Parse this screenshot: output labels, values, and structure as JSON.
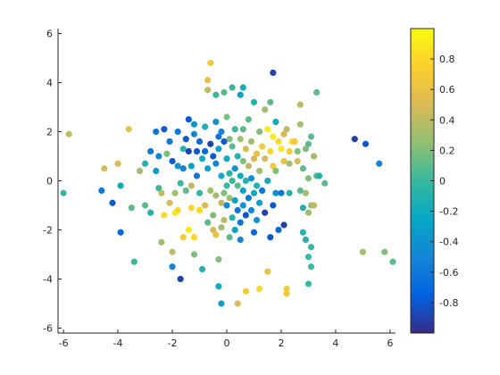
{
  "chart_data": {
    "type": "scatter",
    "title": "",
    "xlabel": "",
    "ylabel": "",
    "xlim": [
      -6.2,
      6.2
    ],
    "ylim": [
      -6.2,
      6.2
    ],
    "xticks": [
      -6,
      -4,
      -2,
      0,
      2,
      4,
      6
    ],
    "yticks": [
      -6,
      -4,
      -2,
      0,
      2,
      4,
      6
    ],
    "xtick_labels": [
      "-6",
      "-4",
      "-2",
      "0",
      "2",
      "4",
      "6"
    ],
    "ytick_labels": [
      "-6",
      "-4",
      "-2",
      "0",
      "2",
      "4",
      "6"
    ],
    "grid": false,
    "colormap": "parula",
    "colorbar": {
      "clim": [
        -1,
        1
      ],
      "ticks": [
        -0.8,
        -0.6,
        -0.4,
        -0.2,
        0,
        0.2,
        0.4,
        0.6,
        0.8
      ],
      "tick_labels": [
        "-0.8",
        "-0.6",
        "-0.4",
        "-0.2",
        "0",
        "0.2",
        "0.4",
        "0.6",
        "0.8"
      ]
    },
    "points": [
      {
        "x": -6.0,
        "y": -0.5,
        "c": 0.0
      },
      {
        "x": -5.8,
        "y": 1.9,
        "c": 0.4
      },
      {
        "x": -4.6,
        "y": -0.4,
        "c": -0.6
      },
      {
        "x": -4.5,
        "y": 0.5,
        "c": 0.5
      },
      {
        "x": -4.2,
        "y": -0.9,
        "c": -0.8
      },
      {
        "x": -4.0,
        "y": 0.7,
        "c": 0.5
      },
      {
        "x": -3.9,
        "y": -2.1,
        "c": -0.7
      },
      {
        "x": -3.9,
        "y": -0.2,
        "c": -0.2
      },
      {
        "x": -3.6,
        "y": 2.1,
        "c": 0.6
      },
      {
        "x": -3.5,
        "y": -1.1,
        "c": 0.1
      },
      {
        "x": -3.4,
        "y": -3.3,
        "c": 0.0
      },
      {
        "x": -3.2,
        "y": 0.4,
        "c": 0.3
      },
      {
        "x": -3.0,
        "y": -1.0,
        "c": 0.1
      },
      {
        "x": -3.0,
        "y": 0.7,
        "c": -0.1
      },
      {
        "x": -2.8,
        "y": 1.2,
        "c": -0.6
      },
      {
        "x": -2.8,
        "y": -1.3,
        "c": -0.1
      },
      {
        "x": -2.6,
        "y": 2.0,
        "c": -0.6
      },
      {
        "x": -2.6,
        "y": 0.4,
        "c": -0.3
      },
      {
        "x": -2.5,
        "y": 1.0,
        "c": -0.5
      },
      {
        "x": -2.5,
        "y": -0.3,
        "c": 0.0
      },
      {
        "x": -2.4,
        "y": -2.5,
        "c": 0.3
      },
      {
        "x": -2.4,
        "y": -0.5,
        "c": 0.4
      },
      {
        "x": -2.3,
        "y": 2.1,
        "c": -0.8
      },
      {
        "x": -2.3,
        "y": -1.4,
        "c": 0.8
      },
      {
        "x": -2.2,
        "y": 1.1,
        "c": 0.2
      },
      {
        "x": -2.1,
        "y": 1.6,
        "c": -0.6
      },
      {
        "x": -2.1,
        "y": -0.9,
        "c": 0.5
      },
      {
        "x": -2.0,
        "y": 0.8,
        "c": -0.8
      },
      {
        "x": -2.0,
        "y": -2.9,
        "c": 0.4
      },
      {
        "x": -2.0,
        "y": -3.5,
        "c": -0.5
      },
      {
        "x": -1.9,
        "y": -0.5,
        "c": 0.3
      },
      {
        "x": -1.9,
        "y": -1.3,
        "c": 0.9
      },
      {
        "x": -1.8,
        "y": 2.0,
        "c": -0.6
      },
      {
        "x": -1.8,
        "y": 0.6,
        "c": -0.4
      },
      {
        "x": -1.8,
        "y": -1.2,
        "c": 0.8
      },
      {
        "x": -1.7,
        "y": -4.0,
        "c": -0.9
      },
      {
        "x": -1.7,
        "y": -0.1,
        "c": 0.0
      },
      {
        "x": -1.6,
        "y": 1.3,
        "c": -0.1
      },
      {
        "x": -1.6,
        "y": 0.5,
        "c": -0.5
      },
      {
        "x": -1.6,
        "y": -2.3,
        "c": 0.7
      },
      {
        "x": -1.5,
        "y": 1.7,
        "c": -0.8
      },
      {
        "x": -1.5,
        "y": -0.4,
        "c": 0.1
      },
      {
        "x": -1.4,
        "y": 2.5,
        "c": -0.8
      },
      {
        "x": -1.4,
        "y": 1.2,
        "c": -0.9
      },
      {
        "x": -1.4,
        "y": -2.0,
        "c": 0.9
      },
      {
        "x": -1.3,
        "y": 0.6,
        "c": -0.3
      },
      {
        "x": -1.3,
        "y": -0.2,
        "c": 0.4
      },
      {
        "x": -1.3,
        "y": -1.1,
        "c": 0.8
      },
      {
        "x": -1.2,
        "y": 1.9,
        "c": -0.5
      },
      {
        "x": -1.2,
        "y": -2.3,
        "c": 0.8
      },
      {
        "x": -1.2,
        "y": -3.0,
        "c": 0.2
      },
      {
        "x": -1.2,
        "y": 2.3,
        "c": -0.4
      },
      {
        "x": -1.1,
        "y": 1.2,
        "c": -0.8
      },
      {
        "x": -1.1,
        "y": 0.2,
        "c": -0.6
      },
      {
        "x": -1.0,
        "y": -0.5,
        "c": 0.0
      },
      {
        "x": -1.0,
        "y": -1.2,
        "c": 0.8
      },
      {
        "x": -1.0,
        "y": 1.6,
        "c": -0.7
      },
      {
        "x": -0.9,
        "y": 0.9,
        "c": -0.2
      },
      {
        "x": -0.9,
        "y": -3.6,
        "c": -0.1
      },
      {
        "x": -0.8,
        "y": 2.2,
        "c": -0.1
      },
      {
        "x": -0.8,
        "y": 1.2,
        "c": -0.7
      },
      {
        "x": -0.8,
        "y": -1.0,
        "c": 0.5
      },
      {
        "x": -0.7,
        "y": 4.1,
        "c": 0.6
      },
      {
        "x": -0.7,
        "y": 3.7,
        "c": 0.4
      },
      {
        "x": -0.7,
        "y": 0.5,
        "c": -0.3
      },
      {
        "x": -0.7,
        "y": -1.7,
        "c": 0.1
      },
      {
        "x": -0.6,
        "y": 4.8,
        "c": 0.7
      },
      {
        "x": -0.6,
        "y": 1.5,
        "c": -0.9
      },
      {
        "x": -0.6,
        "y": -0.4,
        "c": 0.3
      },
      {
        "x": -0.5,
        "y": 1.0,
        "c": -0.8
      },
      {
        "x": -0.5,
        "y": -1.4,
        "c": 0.2
      },
      {
        "x": -0.5,
        "y": -2.0,
        "c": 0.5
      },
      {
        "x": -0.4,
        "y": 3.5,
        "c": 0.0
      },
      {
        "x": -0.4,
        "y": 2.4,
        "c": -0.4
      },
      {
        "x": -0.4,
        "y": 0.7,
        "c": -0.5
      },
      {
        "x": -0.4,
        "y": -0.6,
        "c": 0.3
      },
      {
        "x": -0.4,
        "y": -2.2,
        "c": 0.6
      },
      {
        "x": -0.3,
        "y": 1.8,
        "c": -0.6
      },
      {
        "x": -0.3,
        "y": 1.3,
        "c": -0.3
      },
      {
        "x": -0.3,
        "y": -3.2,
        "c": 0.2
      },
      {
        "x": -0.3,
        "y": -4.3,
        "c": -0.2
      },
      {
        "x": -0.2,
        "y": 2.0,
        "c": -0.5
      },
      {
        "x": -0.2,
        "y": 0.2,
        "c": -0.2
      },
      {
        "x": -0.2,
        "y": -0.9,
        "c": 0.4
      },
      {
        "x": -0.2,
        "y": -1.9,
        "c": 0.3
      },
      {
        "x": -0.2,
        "y": -5.0,
        "c": -0.3
      },
      {
        "x": -0.1,
        "y": 3.6,
        "c": 0.1
      },
      {
        "x": -0.1,
        "y": 1.6,
        "c": -0.8
      },
      {
        "x": -0.1,
        "y": -0.5,
        "c": 0.2
      },
      {
        "x": -0.1,
        "y": -1.6,
        "c": 0.4
      },
      {
        "x": 0.0,
        "y": 2.6,
        "c": 0.2
      },
      {
        "x": 0.0,
        "y": 0.9,
        "c": -0.2
      },
      {
        "x": 0.0,
        "y": -0.2,
        "c": 0.0
      },
      {
        "x": 0.0,
        "y": -1.0,
        "c": -0.5
      },
      {
        "x": 0.1,
        "y": 1.7,
        "c": 0.2
      },
      {
        "x": 0.1,
        "y": 0.3,
        "c": -0.1
      },
      {
        "x": 0.1,
        "y": -0.7,
        "c": 0.3
      },
      {
        "x": 0.1,
        "y": -2.3,
        "c": 0.1
      },
      {
        "x": 0.2,
        "y": 3.8,
        "c": 0.0
      },
      {
        "x": 0.2,
        "y": 1.4,
        "c": 0.1
      },
      {
        "x": 0.2,
        "y": 0.0,
        "c": 0.0
      },
      {
        "x": 0.2,
        "y": -1.5,
        "c": -0.1
      },
      {
        "x": 0.3,
        "y": 2.1,
        "c": 0.0
      },
      {
        "x": 0.3,
        "y": 0.5,
        "c": -0.4
      },
      {
        "x": 0.3,
        "y": -0.8,
        "c": -0.3
      },
      {
        "x": 0.3,
        "y": -2.0,
        "c": -0.3
      },
      {
        "x": 0.4,
        "y": 1.0,
        "c": -0.1
      },
      {
        "x": 0.4,
        "y": -0.2,
        "c": 0.1
      },
      {
        "x": 0.4,
        "y": -1.2,
        "c": -0.6
      },
      {
        "x": 0.4,
        "y": -5.0,
        "c": 0.5
      },
      {
        "x": 0.5,
        "y": 3.5,
        "c": -0.3
      },
      {
        "x": 0.5,
        "y": 1.7,
        "c": 0.3
      },
      {
        "x": 0.5,
        "y": 0.2,
        "c": -0.2
      },
      {
        "x": 0.5,
        "y": -1.7,
        "c": -0.6
      },
      {
        "x": 0.5,
        "y": -2.4,
        "c": -0.5
      },
      {
        "x": 0.6,
        "y": 3.8,
        "c": -0.2
      },
      {
        "x": 0.6,
        "y": 2.1,
        "c": 0.1
      },
      {
        "x": 0.6,
        "y": 0.8,
        "c": 0.2
      },
      {
        "x": 0.6,
        "y": -0.4,
        "c": -0.3
      },
      {
        "x": 0.6,
        "y": -1.0,
        "c": -0.4
      },
      {
        "x": 0.7,
        "y": 1.3,
        "c": 0.5
      },
      {
        "x": 0.7,
        "y": 0.0,
        "c": -0.1
      },
      {
        "x": 0.7,
        "y": -1.4,
        "c": -0.8
      },
      {
        "x": 0.7,
        "y": -4.5,
        "c": 0.7
      },
      {
        "x": 0.8,
        "y": 2.5,
        "c": 0.1
      },
      {
        "x": 0.8,
        "y": 0.6,
        "c": 0.4
      },
      {
        "x": 0.8,
        "y": -0.7,
        "c": -0.6
      },
      {
        "x": 0.9,
        "y": 1.6,
        "c": 0.3
      },
      {
        "x": 0.9,
        "y": 0.1,
        "c": -0.4
      },
      {
        "x": 0.9,
        "y": -1.2,
        "c": -0.5
      },
      {
        "x": 1.0,
        "y": 3.2,
        "c": -0.1
      },
      {
        "x": 1.0,
        "y": 0.9,
        "c": 0.5
      },
      {
        "x": 1.0,
        "y": -0.5,
        "c": -0.2
      },
      {
        "x": 1.0,
        "y": -2.1,
        "c": -0.7
      },
      {
        "x": 1.1,
        "y": 1.1,
        "c": 0.6
      },
      {
        "x": 1.1,
        "y": -0.2,
        "c": -0.1
      },
      {
        "x": 1.1,
        "y": -1.6,
        "c": -0.4
      },
      {
        "x": 1.2,
        "y": 2.0,
        "c": 0.2
      },
      {
        "x": 1.2,
        "y": 0.4,
        "c": 0.3
      },
      {
        "x": 1.2,
        "y": -0.9,
        "c": -0.3
      },
      {
        "x": 1.2,
        "y": -4.4,
        "c": 0.8
      },
      {
        "x": 1.3,
        "y": 1.4,
        "c": 0.7
      },
      {
        "x": 1.3,
        "y": -0.4,
        "c": -0.6
      },
      {
        "x": 1.4,
        "y": 2.9,
        "c": 0.3
      },
      {
        "x": 1.4,
        "y": 0.9,
        "c": 0.5
      },
      {
        "x": 1.4,
        "y": -1.3,
        "c": -0.9
      },
      {
        "x": 1.5,
        "y": 2.1,
        "c": 0.9
      },
      {
        "x": 1.5,
        "y": 0.0,
        "c": -0.2
      },
      {
        "x": 1.5,
        "y": -3.7,
        "c": 0.6
      },
      {
        "x": 1.6,
        "y": 3.2,
        "c": 0.1
      },
      {
        "x": 1.6,
        "y": 1.2,
        "c": 0.8
      },
      {
        "x": 1.6,
        "y": -2.3,
        "c": -0.8
      },
      {
        "x": 1.7,
        "y": 4.4,
        "c": -0.9
      },
      {
        "x": 1.7,
        "y": 1.8,
        "c": 0.9
      },
      {
        "x": 1.7,
        "y": 0.6,
        "c": 0.7
      },
      {
        "x": 1.7,
        "y": -1.0,
        "c": -0.8
      },
      {
        "x": 1.8,
        "y": 2.4,
        "c": -0.2
      },
      {
        "x": 1.8,
        "y": 0.4,
        "c": 0.2
      },
      {
        "x": 1.8,
        "y": -0.5,
        "c": -0.4
      },
      {
        "x": 1.9,
        "y": 1.6,
        "c": 0.8
      },
      {
        "x": 1.9,
        "y": -2.0,
        "c": -0.7
      },
      {
        "x": 2.0,
        "y": 1.3,
        "c": 0.9
      },
      {
        "x": 2.0,
        "y": -0.5,
        "c": -0.6
      },
      {
        "x": 2.1,
        "y": 1.9,
        "c": 0.5
      },
      {
        "x": 2.1,
        "y": 0.8,
        "c": 0.6
      },
      {
        "x": 2.1,
        "y": -1.8,
        "c": -0.9
      },
      {
        "x": 2.2,
        "y": 2.1,
        "c": 0.4
      },
      {
        "x": 2.2,
        "y": -4.4,
        "c": 0.7
      },
      {
        "x": 2.2,
        "y": -4.6,
        "c": 0.7
      },
      {
        "x": 2.3,
        "y": 1.2,
        "c": 0.7
      },
      {
        "x": 2.3,
        "y": 0.7,
        "c": 0.3
      },
      {
        "x": 2.3,
        "y": -0.5,
        "c": -0.1
      },
      {
        "x": 2.4,
        "y": 1.6,
        "c": 0.8
      },
      {
        "x": 2.5,
        "y": 1.6,
        "c": 0.7
      },
      {
        "x": 2.6,
        "y": 0.8,
        "c": 0.5
      },
      {
        "x": 2.6,
        "y": 1.2,
        "c": 0.2
      },
      {
        "x": 2.7,
        "y": 3.1,
        "c": 0.4
      },
      {
        "x": 2.7,
        "y": 2.3,
        "c": 0.3
      },
      {
        "x": 2.7,
        "y": -0.4,
        "c": 0.1
      },
      {
        "x": 2.8,
        "y": 0.5,
        "c": 0.1
      },
      {
        "x": 2.8,
        "y": -1.1,
        "c": -0.1
      },
      {
        "x": 2.8,
        "y": -2.1,
        "c": -0.1
      },
      {
        "x": 2.9,
        "y": 1.3,
        "c": 0.2
      },
      {
        "x": 2.9,
        "y": -0.5,
        "c": 0.3
      },
      {
        "x": 2.9,
        "y": -2.4,
        "c": -0.1
      },
      {
        "x": 3.0,
        "y": 1.5,
        "c": 0.1
      },
      {
        "x": 3.0,
        "y": 0.1,
        "c": 0.2
      },
      {
        "x": 3.0,
        "y": -1.3,
        "c": 0.3
      },
      {
        "x": 3.0,
        "y": -3.1,
        "c": 0.0
      },
      {
        "x": 3.0,
        "y": -4.2,
        "c": 0.0
      },
      {
        "x": 3.1,
        "y": 1.8,
        "c": 0.1
      },
      {
        "x": 3.1,
        "y": -1.0,
        "c": 0.3
      },
      {
        "x": 3.1,
        "y": -2.7,
        "c": 0.0
      },
      {
        "x": 3.1,
        "y": -3.5,
        "c": 0.0
      },
      {
        "x": 3.2,
        "y": 1.0,
        "c": 0.3
      },
      {
        "x": 3.2,
        "y": -1.0,
        "c": 0.4
      },
      {
        "x": 3.3,
        "y": 0.2,
        "c": 0.1
      },
      {
        "x": 3.3,
        "y": 3.6,
        "c": 0.1
      },
      {
        "x": 3.4,
        "y": 0.2,
        "c": -0.1
      },
      {
        "x": 3.6,
        "y": -0.1,
        "c": 0.1
      },
      {
        "x": 4.7,
        "y": 1.7,
        "c": -0.9
      },
      {
        "x": 5.0,
        "y": -2.9,
        "c": 0.3
      },
      {
        "x": 5.1,
        "y": 1.5,
        "c": -0.8
      },
      {
        "x": 5.6,
        "y": 0.7,
        "c": -0.5
      },
      {
        "x": 5.8,
        "y": -2.9,
        "c": 0.2
      },
      {
        "x": 6.1,
        "y": -3.3,
        "c": 0.1
      }
    ]
  }
}
